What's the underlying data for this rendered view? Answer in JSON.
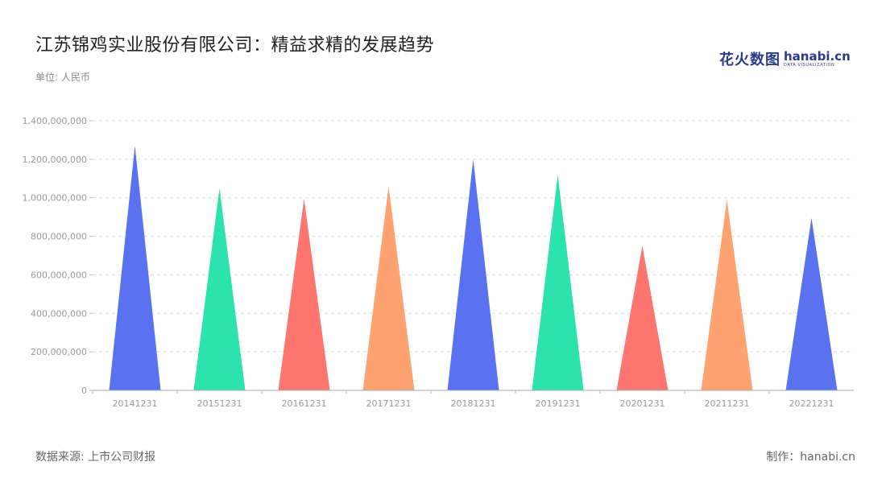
{
  "header": {
    "title": "江苏锦鸡实业股份有限公司：精益求精的发展趋势",
    "unit": "单位: 人民币"
  },
  "logo": {
    "cn": "花火数图",
    "en": "hanabi.cn",
    "en_sub": "DATA VISUALIZATION"
  },
  "footer": {
    "source": "数据来源: 上市公司财报",
    "credit": "制作：hanabi.cn"
  },
  "colors": {
    "blue": "#5a72f0",
    "green": "#2de3ad",
    "red": "#ff7570",
    "orange": "#ffa272",
    "grid": "#dddddd",
    "axis_text": "#999999"
  },
  "chart_data": {
    "type": "bar",
    "bar_shape": "triangle",
    "categories": [
      "20141231",
      "20151231",
      "20161231",
      "20171231",
      "20181231",
      "20191231",
      "20201231",
      "20211231",
      "20221231"
    ],
    "values": [
      1270000000,
      1050000000,
      995000000,
      1060000000,
      1200000000,
      1120000000,
      750000000,
      990000000,
      895000000
    ],
    "bar_colors": [
      "#5a72f0",
      "#2de3ad",
      "#ff7570",
      "#ffa272",
      "#5a72f0",
      "#2de3ad",
      "#ff7570",
      "#ffa272",
      "#5a72f0"
    ],
    "yticks": [
      "0",
      "200,000,000",
      "400,000,000",
      "600,000,000",
      "800,000,000",
      "1,000,000,000",
      "1,200,000,000",
      "1,400,000,000"
    ],
    "ylim": [
      0,
      1400000000
    ],
    "grid": true,
    "legend": "none"
  }
}
